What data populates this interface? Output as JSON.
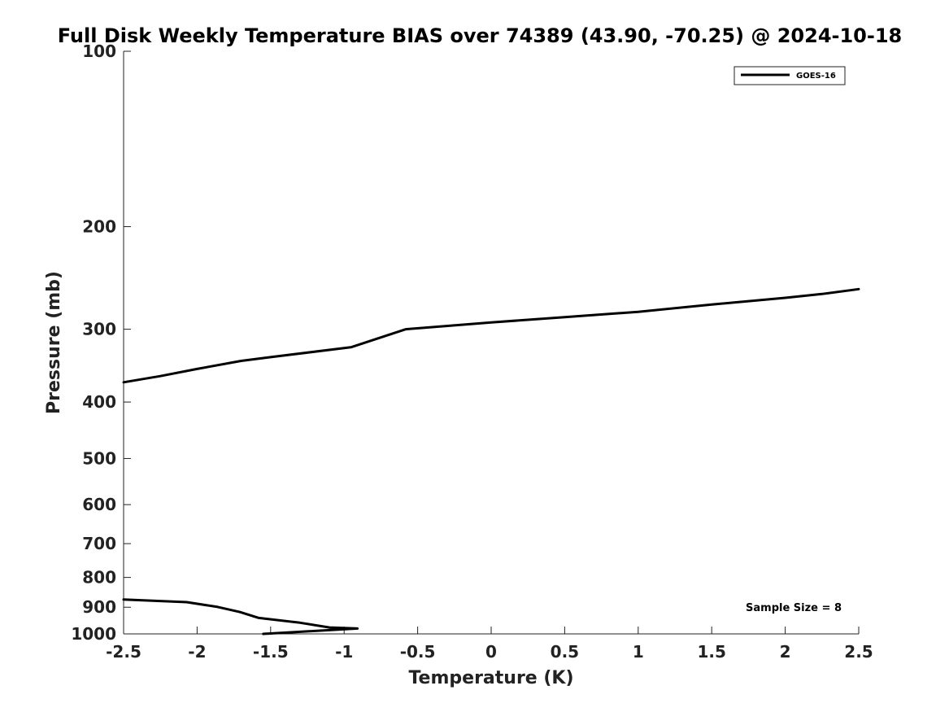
{
  "chart_data": {
    "type": "line",
    "title": "Full Disk Weekly Temperature BIAS over 74389 (43.90, -70.25) @ 2024-10-18",
    "xlabel": "Temperature (K)",
    "ylabel": "Pressure (mb)",
    "xlim": [
      -2.5,
      2.5
    ],
    "ylim": [
      100,
      1000
    ],
    "y_scale": "log",
    "y_reversed": true,
    "x_ticks": [
      -2.5,
      -2,
      -1.5,
      -1,
      -0.5,
      0,
      0.5,
      1,
      1.5,
      2,
      2.5
    ],
    "x_tick_labels": [
      "-2.5",
      "-2",
      "-1.5",
      "-1",
      "-0.5",
      "0",
      "0.5",
      "1",
      "1.5",
      "2",
      "2.5"
    ],
    "y_ticks": [
      100,
      200,
      300,
      400,
      500,
      600,
      700,
      800,
      900,
      1000
    ],
    "y_tick_labels": [
      "100",
      "200",
      "300",
      "400",
      "500",
      "600",
      "700",
      "800",
      "900",
      "1000"
    ],
    "grid": false,
    "legend_position": "top-right",
    "series": [
      {
        "name": "GOES-16",
        "color": "#000000",
        "segments": [
          [
            [
              -2.5,
              370
            ],
            [
              -2.25,
              361
            ],
            [
              -2.0,
              351
            ],
            [
              -1.7,
              340
            ],
            [
              -1.5,
              335
            ],
            [
              -0.95,
              322
            ],
            [
              -0.58,
              300
            ],
            [
              0.0,
              292
            ],
            [
              0.5,
              286
            ],
            [
              1.0,
              280
            ],
            [
              1.5,
              272
            ],
            [
              2.0,
              265
            ],
            [
              2.25,
              261
            ],
            [
              2.5,
              256
            ]
          ],
          [
            [
              -2.5,
              873
            ],
            [
              -2.07,
              882
            ],
            [
              -1.86,
              899
            ],
            [
              -1.71,
              917
            ],
            [
              -1.58,
              939
            ],
            [
              -1.3,
              957
            ],
            [
              -1.1,
              975
            ],
            [
              -0.91,
              979
            ],
            [
              -1.25,
              990
            ],
            [
              -1.55,
              1000
            ]
          ]
        ]
      }
    ],
    "annotations": [
      {
        "text": "Sample Size = 8",
        "position": "bottom-right"
      }
    ]
  }
}
